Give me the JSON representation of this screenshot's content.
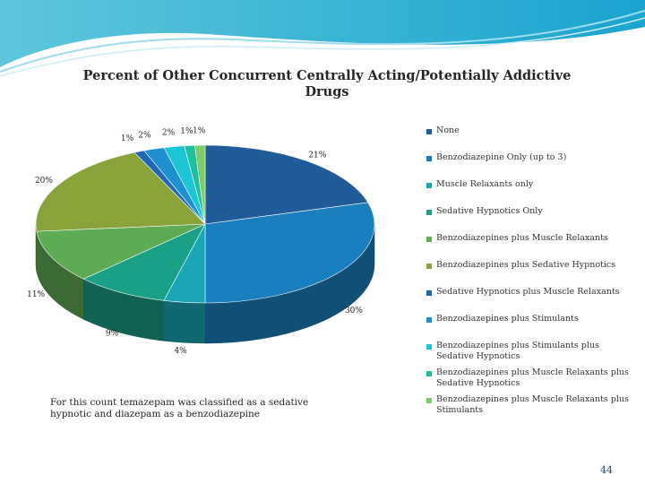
{
  "chart_data": {
    "type": "pie",
    "title": "Percent of Other Concurrent Centrally Acting/Potentially Addictive Drugs",
    "categories": [
      "None",
      "Benzodiazepine Only (up to 3)",
      "Muscle Relaxants only",
      "Sedative Hypnotics Only",
      "Benzodiazepines plus Muscle Relaxants",
      "Benzodiazepines plus Sedative Hypnotics",
      "Sedative Hypnotics plus Muscle Relaxants",
      "Benzodiazepines plus  Stimulants",
      "Benzodiazepines plus  Stimulants plus Sedative Hypnotics",
      "Benzodiazepines plus Muscle Relaxants plus Sedative Hypnotics",
      "Benzodiazepines plus Muscle Relaxants plus Stimulants"
    ],
    "values": [
      21,
      30,
      4,
      9,
      11,
      20,
      1,
      2,
      2,
      1,
      1
    ],
    "data_labels": [
      "21%",
      "30%",
      "4%",
      "9%",
      "11%",
      "20%",
      "1%",
      "2%",
      "2%",
      "1%",
      "1%"
    ],
    "colors": [
      "#1f5c99",
      "#1a7fbf",
      "#1ba6b8",
      "#1aa087",
      "#5fab55",
      "#8aa23a",
      "#1f66b5",
      "#1c90d0",
      "#1dc4d6",
      "#1fbf9e",
      "#7dcc6a"
    ],
    "legend_position": "right"
  },
  "footnote": "For this count temazepam was classified as a sedative hypnotic and diazepam as a benzodiazepine",
  "page_number": "44"
}
